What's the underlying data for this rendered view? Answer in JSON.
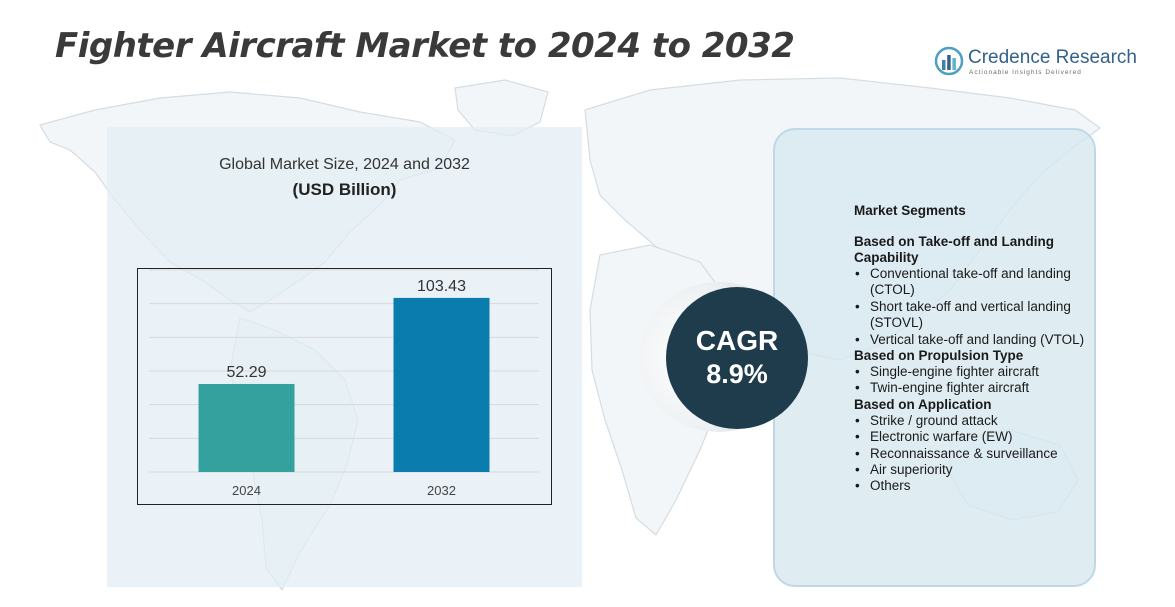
{
  "title": "Fighter Aircraft Market to 2024 to 2032",
  "brand": {
    "name": "Credence Research",
    "tagline": "Actionable Insights Delivered",
    "color": "#33618a"
  },
  "chart_data": {
    "type": "bar",
    "title": "Global Market Size,  2024 and 2032",
    "unit_label": "(USD Billion)",
    "categories": [
      "2024",
      "2032"
    ],
    "values": [
      52.29,
      103.43
    ],
    "value_labels": [
      "52.29",
      "103.43"
    ],
    "colors": [
      "#35a19f",
      "#0a7cad"
    ],
    "ylim": [
      0,
      120
    ],
    "grid": true,
    "xlabel": "",
    "ylabel": ""
  },
  "cagr": {
    "label": "CAGR",
    "value": "8.9%"
  },
  "segments": {
    "heading": "Market Segments",
    "groups": [
      {
        "title": "Based on Take-off and Landing Capability",
        "items": [
          "Conventional take-off and landing (CTOL)",
          "Short take-off and vertical landing (STOVL)",
          "Vertical take-off and landing (VTOL)"
        ]
      },
      {
        "title": "Based on Propulsion Type",
        "items": [
          "Single-engine fighter aircraft",
          "Twin-engine fighter aircraft"
        ]
      },
      {
        "title": "Based on Application",
        "items": [
          "Strike / ground attack",
          "Electronic warfare (EW)",
          "Reconnaissance & surveillance",
          "Air superiority",
          "Others"
        ]
      }
    ]
  }
}
